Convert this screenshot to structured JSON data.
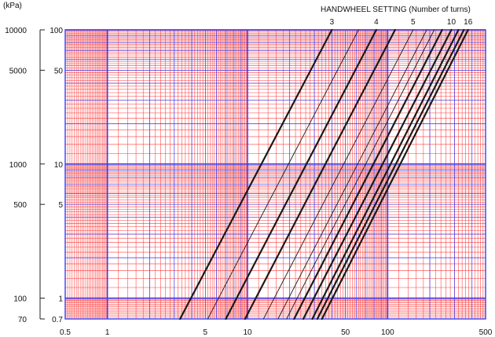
{
  "chart_data": {
    "type": "line",
    "title": "",
    "legend_title": "HANDWHEEL SETTING (Number of turns)",
    "kpa_unit_label": "(kPa)",
    "x_scale": "log",
    "y_scale": "log",
    "xlim": [
      0.5,
      500
    ],
    "ylim": [
      0.7,
      100
    ],
    "x_ticks": [
      0.5,
      1,
      5,
      10,
      50,
      100,
      500
    ],
    "x_tick_labels": [
      "0.5",
      "1",
      "5",
      "10",
      "50",
      "100",
      "500"
    ],
    "y_ticks": [
      0.7,
      1,
      5,
      10,
      50,
      100
    ],
    "y_tick_labels": [
      "0.7",
      "1",
      "5",
      "10",
      "50",
      "100"
    ],
    "kpa_ticks": [
      70,
      100,
      500,
      1000,
      5000,
      10000
    ],
    "kpa_tick_labels": [
      "70",
      "100",
      "500",
      "1000",
      "5000",
      "10000"
    ],
    "grid": true,
    "colors": {
      "minor_grid": "#ff3b3b",
      "major_grid": "#3d3df2",
      "line": "#1a1a1a",
      "background": "#ffffff"
    },
    "series": [
      {
        "name": "3",
        "labeled": true,
        "heavy": true,
        "x": [
          3.3,
          40
        ],
        "y": [
          0.7,
          100
        ]
      },
      {
        "name": "",
        "labeled": false,
        "heavy": false,
        "x": [
          5.2,
          62
        ],
        "y": [
          0.7,
          100
        ]
      },
      {
        "name": "4",
        "labeled": true,
        "heavy": true,
        "x": [
          7.0,
          83
        ],
        "y": [
          0.7,
          100
        ]
      },
      {
        "name": "",
        "labeled": false,
        "heavy": true,
        "x": [
          9.6,
          113
        ],
        "y": [
          0.7,
          100
        ]
      },
      {
        "name": "5",
        "labeled": true,
        "heavy": false,
        "x": [
          13.0,
          152
        ],
        "y": [
          0.7,
          100
        ]
      },
      {
        "name": "",
        "labeled": false,
        "heavy": false,
        "x": [
          16.5,
          190
        ],
        "y": [
          0.7,
          100
        ]
      },
      {
        "name": "",
        "labeled": false,
        "heavy": false,
        "x": [
          19.0,
          215
        ],
        "y": [
          0.7,
          100
        ]
      },
      {
        "name": "",
        "labeled": false,
        "heavy": true,
        "x": [
          21.5,
          245
        ],
        "y": [
          0.7,
          100
        ]
      },
      {
        "name": "10",
        "labeled": true,
        "heavy": true,
        "x": [
          25.0,
          285
        ],
        "y": [
          0.7,
          100
        ]
      },
      {
        "name": "",
        "labeled": false,
        "heavy": true,
        "x": [
          29.0,
          320
        ],
        "y": [
          0.7,
          100
        ]
      },
      {
        "name": "",
        "labeled": false,
        "heavy": true,
        "x": [
          31.5,
          350
        ],
        "y": [
          0.7,
          100
        ]
      },
      {
        "name": "16",
        "labeled": true,
        "heavy": true,
        "x": [
          34.0,
          375
        ],
        "y": [
          0.7,
          100
        ]
      }
    ]
  }
}
